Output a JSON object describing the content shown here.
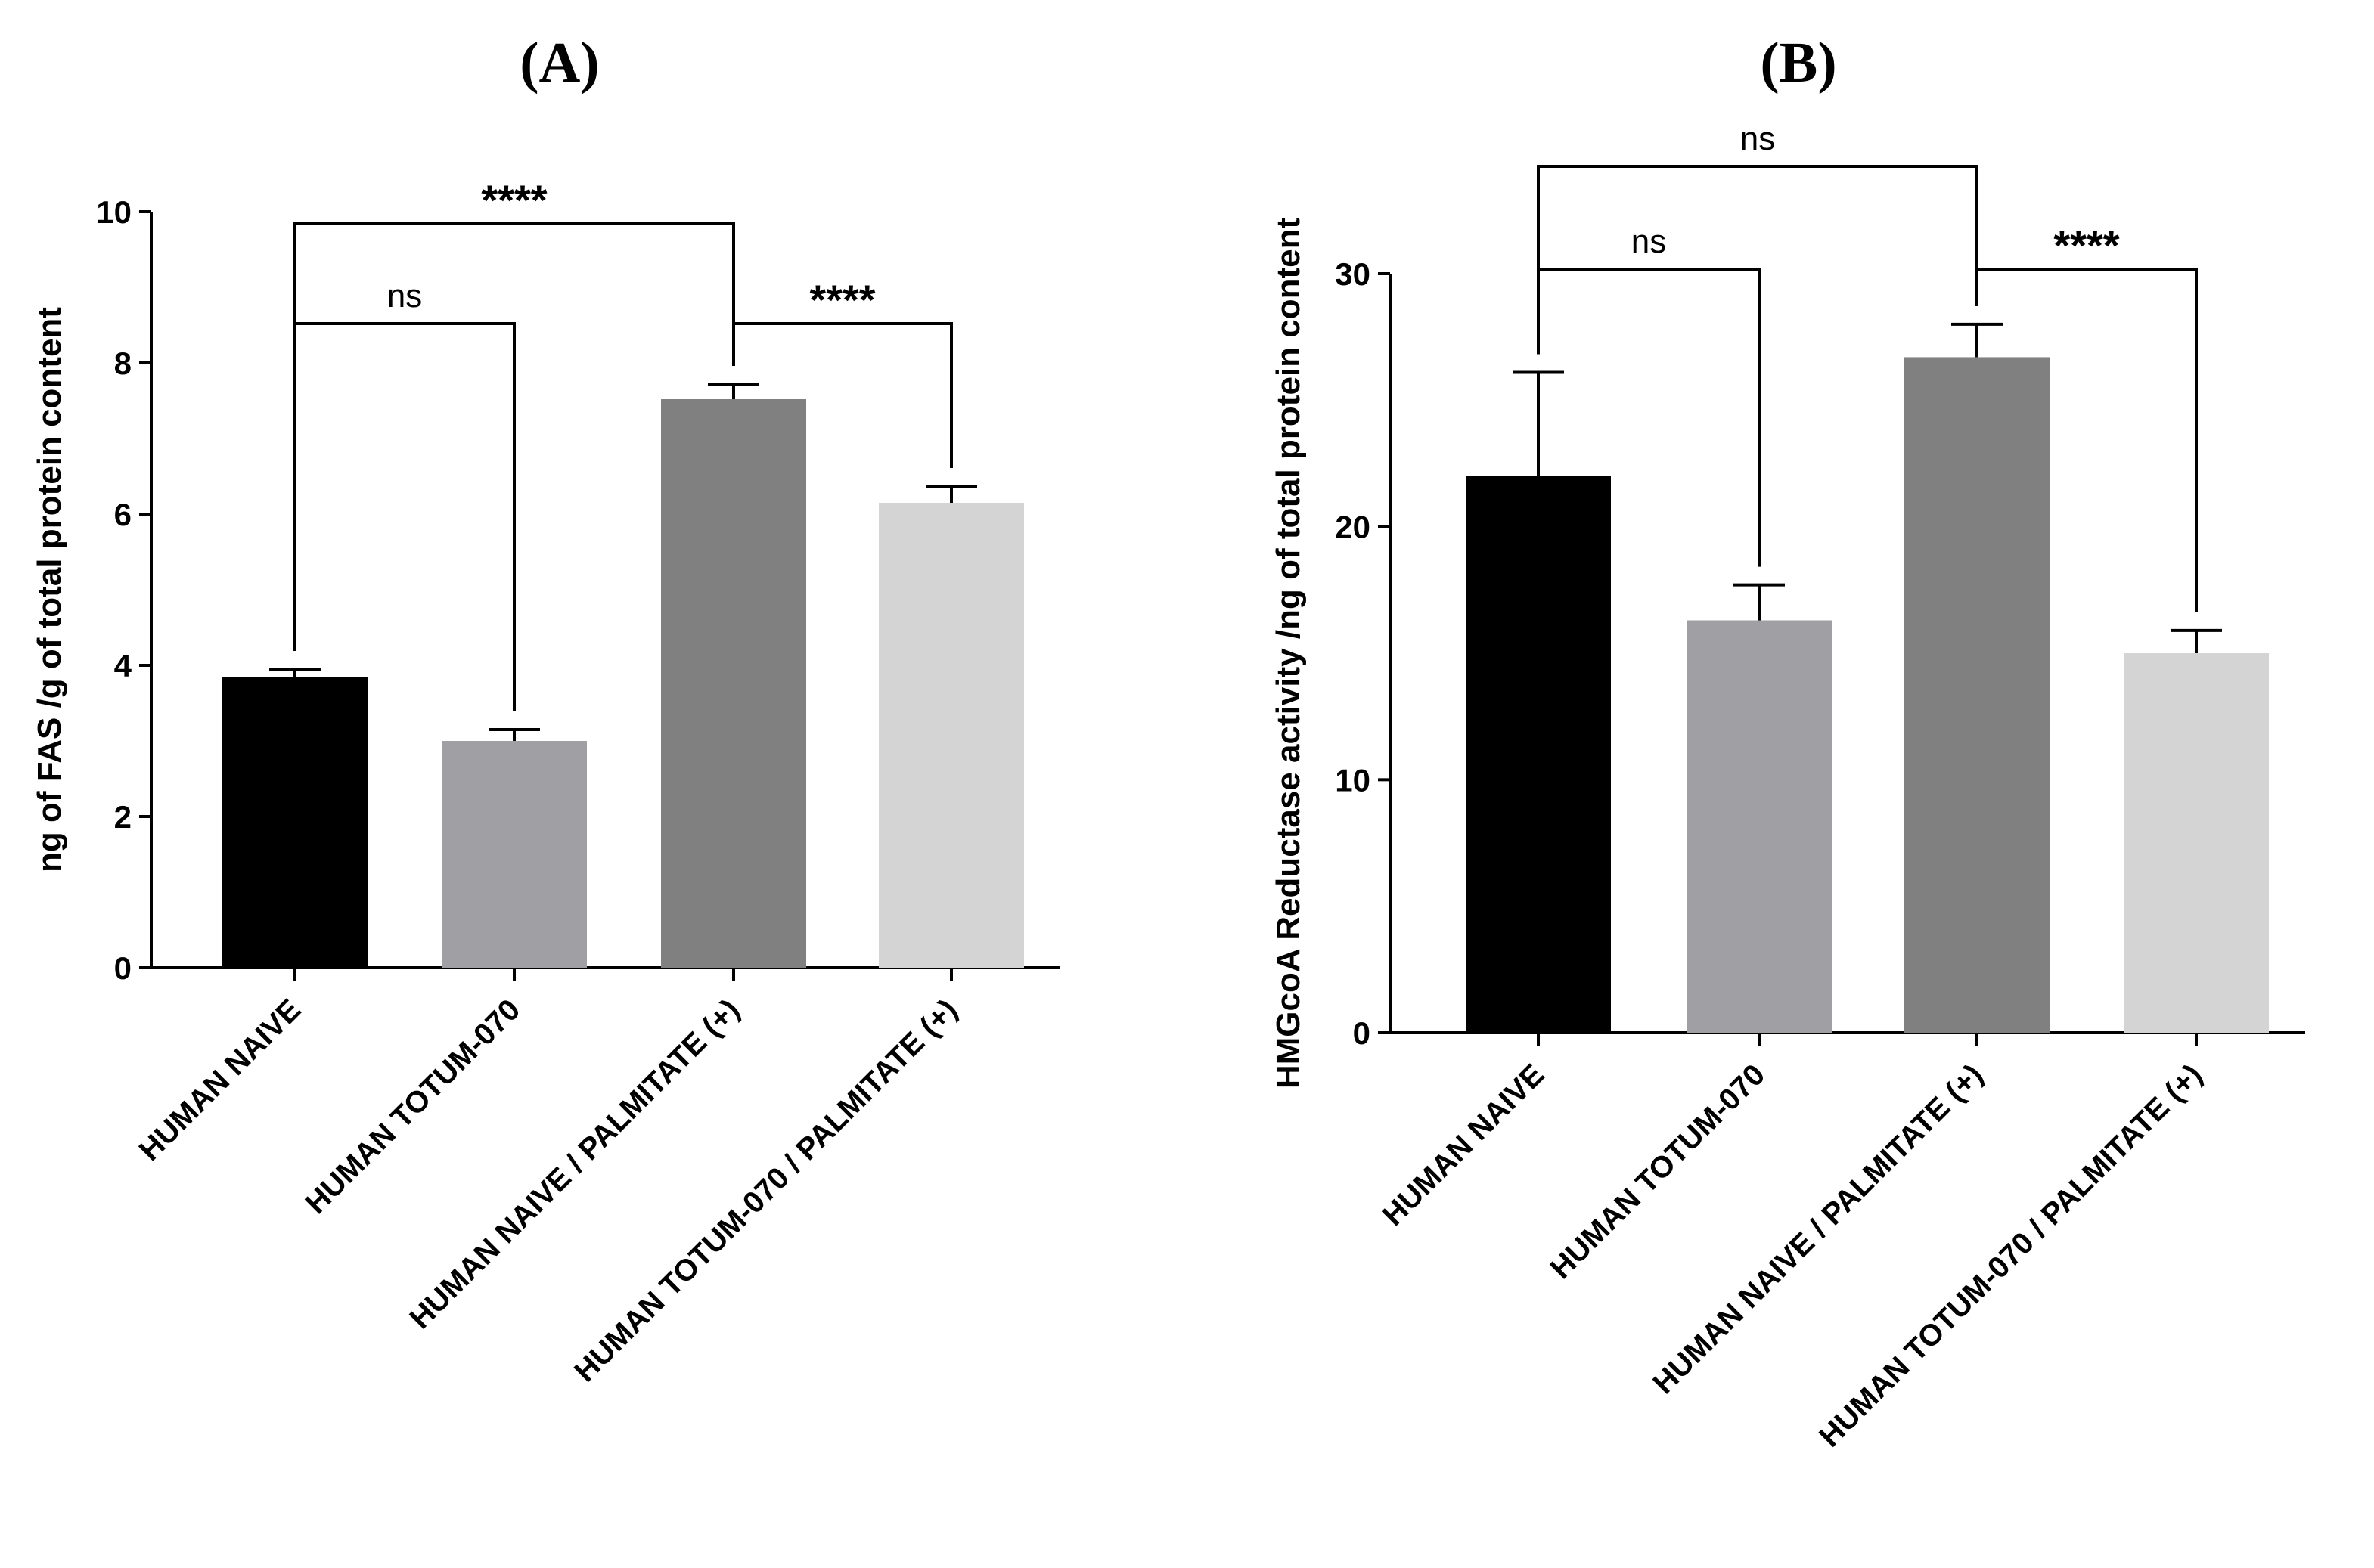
{
  "chart_data": [
    {
      "type": "bar",
      "panel_label": "(A)",
      "ylabel": "ng of FAS /g of total protein content",
      "xlabel": "",
      "ylim": [
        0,
        10
      ],
      "yticks": [
        0,
        2,
        4,
        6,
        8,
        10
      ],
      "categories": [
        "HUMAN NAIVE",
        "HUMAN TOTUM-070",
        "HUMAN NAIVE / PALMITATE (+)",
        "HUMAN TOTUM-070 / PALMITATE (+)"
      ],
      "values": [
        3.85,
        3.0,
        7.52,
        6.15
      ],
      "errors": [
        0.1,
        0.15,
        0.2,
        0.22
      ],
      "bar_colors": [
        "#000000",
        "#a0a0a4",
        "#808080",
        "#d4d4d4"
      ],
      "significance": [
        {
          "from": 0,
          "to": 2,
          "label": "****"
        },
        {
          "from": 0,
          "to": 1,
          "label": "ns"
        },
        {
          "from": 2,
          "to": 3,
          "label": "****"
        }
      ]
    },
    {
      "type": "bar",
      "panel_label": "(B)",
      "ylabel": "HMGcoA Reductase activity /ng of total protein content",
      "xlabel": "",
      "ylim": [
        0,
        30
      ],
      "yticks": [
        0,
        10,
        20,
        30
      ],
      "categories": [
        "HUMAN NAIVE",
        "HUMAN TOTUM-070",
        "HUMAN NAIVE / PALMITATE (+)",
        "HUMAN TOTUM-070 / PALMITATE (+)"
      ],
      "values": [
        22.0,
        16.3,
        26.7,
        15.0
      ],
      "errors": [
        4.1,
        1.4,
        1.3,
        0.9
      ],
      "bar_colors": [
        "#000000",
        "#a0a0a4",
        "#808080",
        "#d4d4d4"
      ],
      "significance": [
        {
          "from": 0,
          "to": 2,
          "label": "ns"
        },
        {
          "from": 0,
          "to": 1,
          "label": "ns"
        },
        {
          "from": 2,
          "to": 3,
          "label": "****"
        }
      ]
    }
  ]
}
